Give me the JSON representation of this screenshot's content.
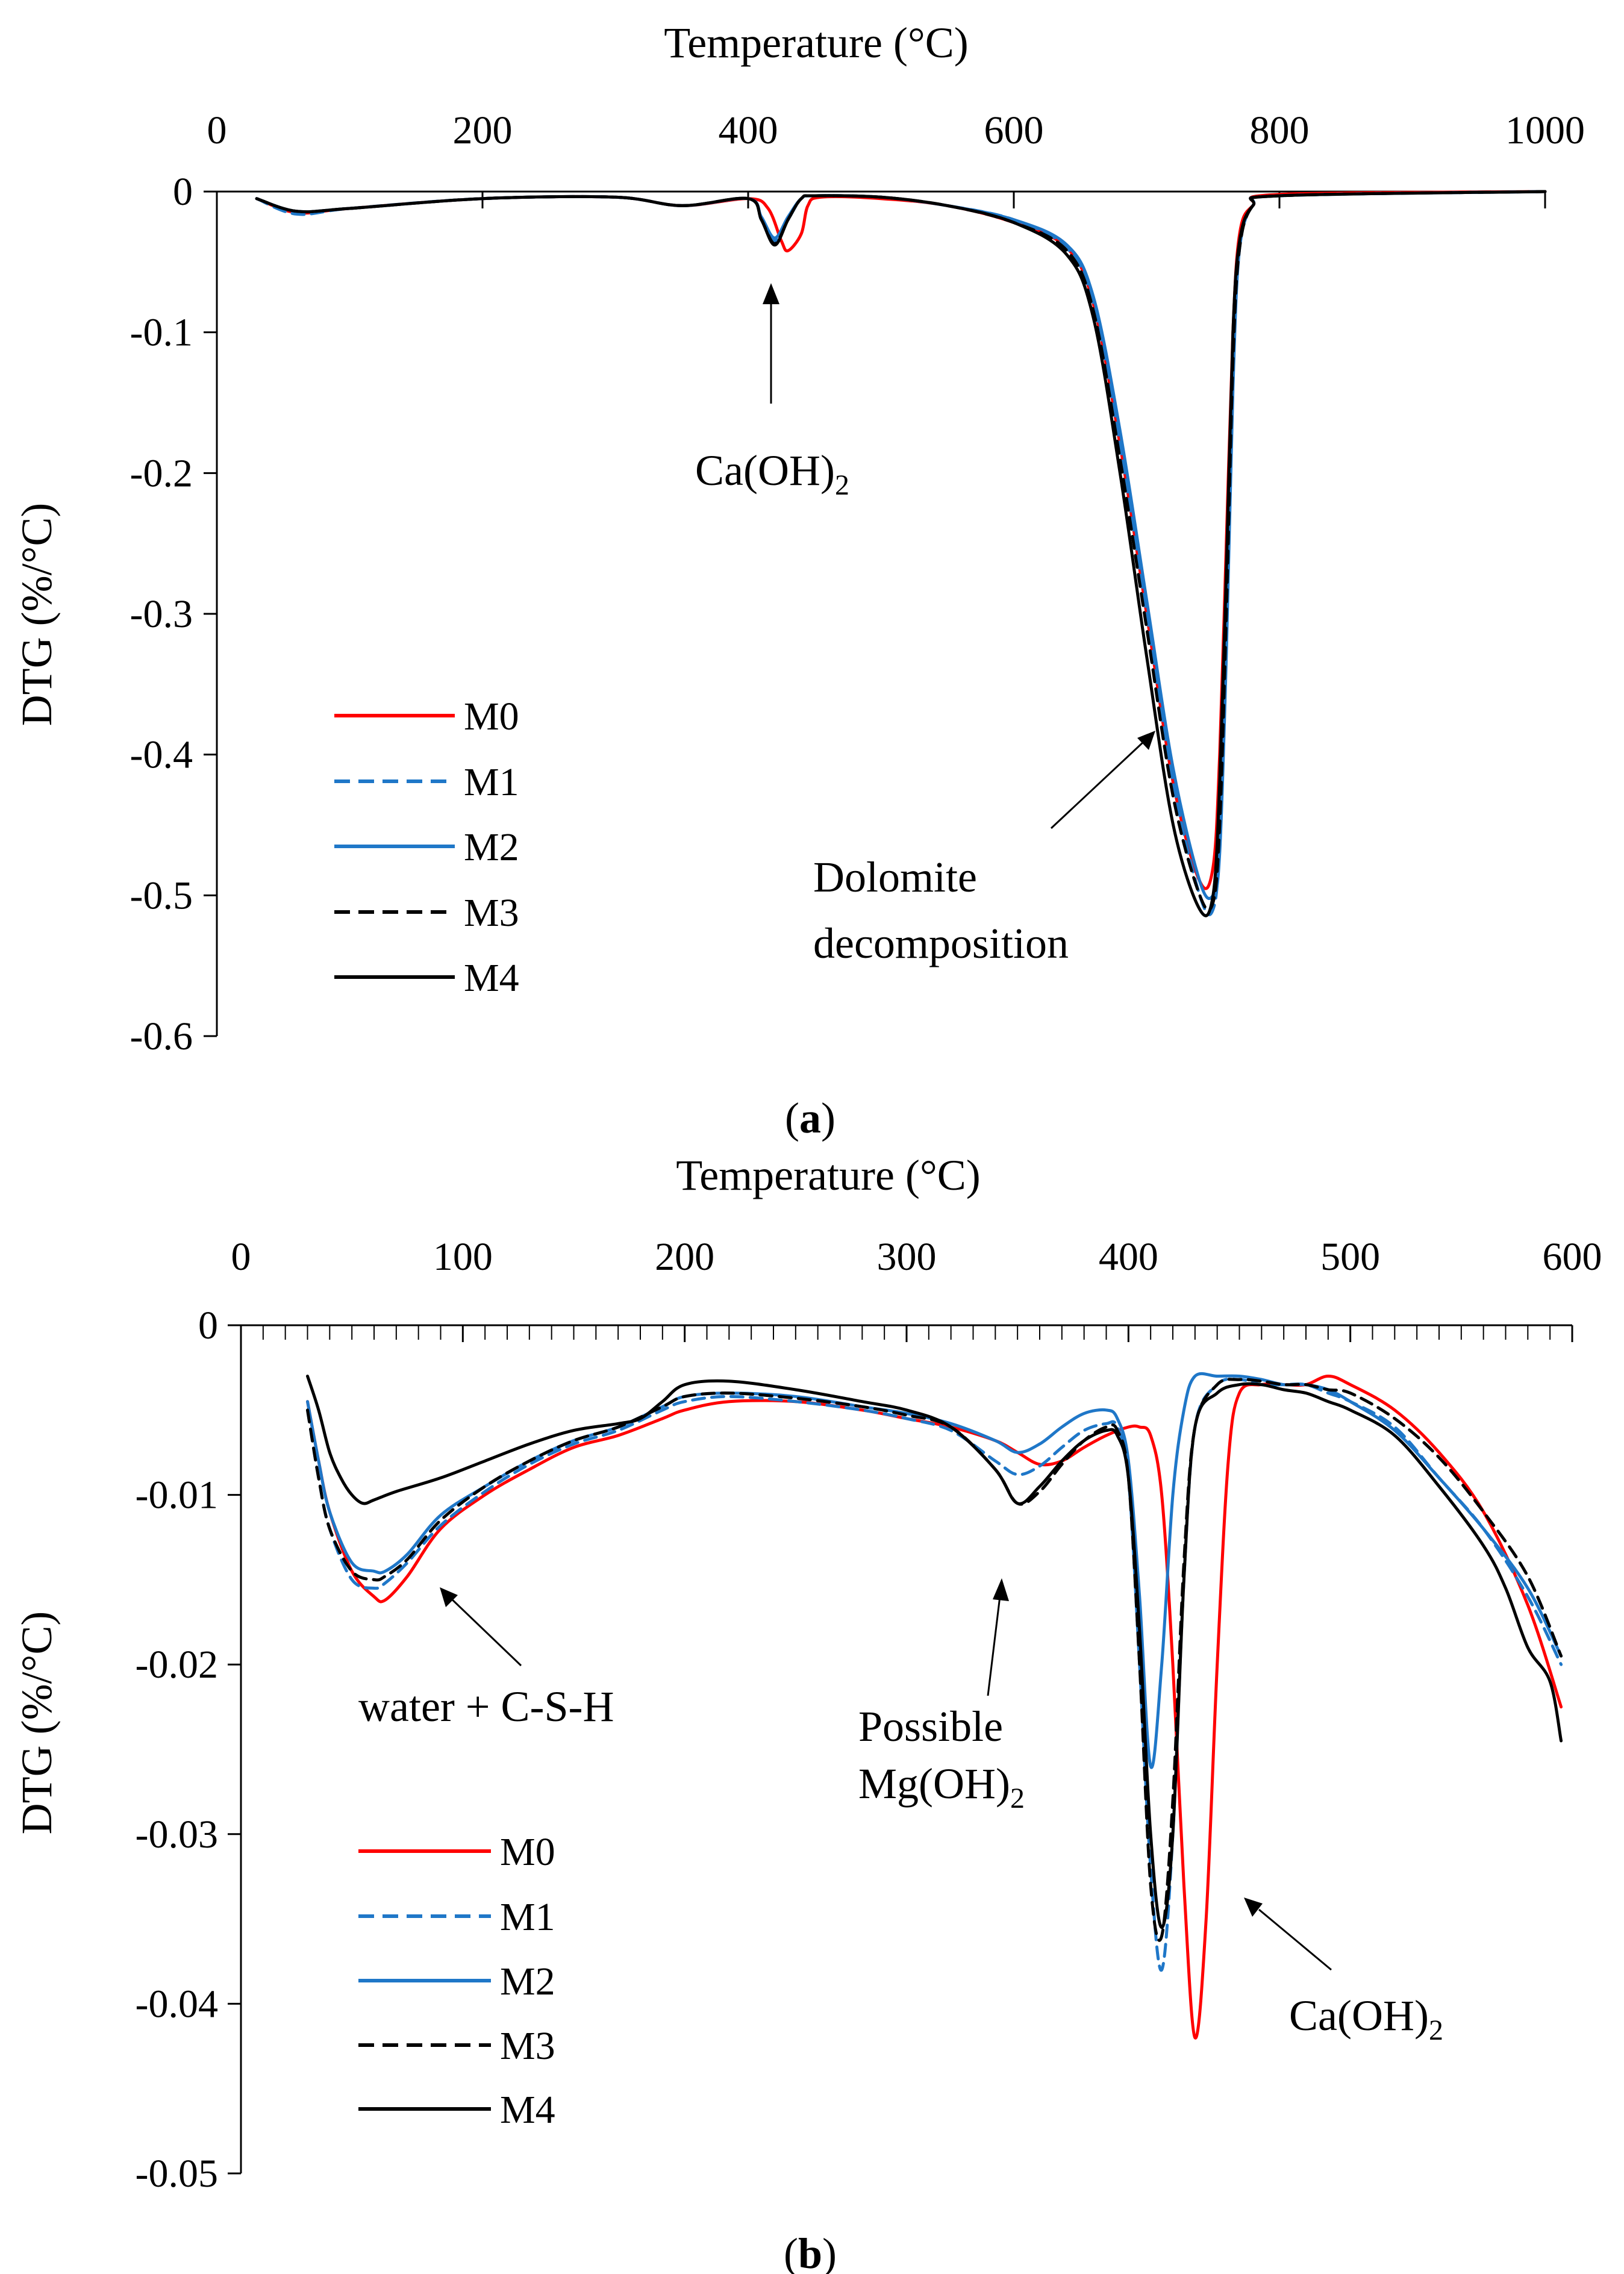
{
  "colors": {
    "M0": "#ff0000",
    "M1": "#1f77c8",
    "M2": "#1f77c8",
    "M3": "#000000",
    "M4": "#000000"
  },
  "chart_data": [
    {
      "type": "line",
      "panel": "a",
      "caption": {
        "open": "(",
        "letter": "a",
        "close": ")"
      },
      "xlabel": "Temperature (°C)",
      "ylabel": "DTG (%/°C)",
      "xlim": [
        0,
        1000
      ],
      "ylim": [
        -0.6,
        0
      ],
      "xticks": [
        "0",
        "200",
        "400",
        "600",
        "800",
        "1000"
      ],
      "yticks": [
        "0",
        "-0.1",
        "-0.2",
        "-0.3",
        "-0.4",
        "-0.5",
        "-0.6"
      ],
      "legend_position": "bottom-left",
      "annotations": [
        {
          "lines": [
            {
              "text": "Ca(OH)",
              "sub": "2"
            }
          ],
          "target": [
            420,
            -0.035
          ]
        },
        {
          "lines": [
            {
              "text": "Dolomite"
            },
            {
              "text": "decomposition"
            }
          ],
          "target": [
            705,
            -0.38
          ]
        }
      ],
      "series": [
        {
          "name": "M0",
          "style": "solid",
          "x": [
            30,
            60,
            100,
            200,
            300,
            350,
            400,
            415,
            425,
            430,
            440,
            445,
            455,
            500,
            550,
            600,
            640,
            660,
            680,
            700,
            720,
            740,
            750,
            755,
            760,
            765,
            770,
            780,
            800,
            1000
          ],
          "y": [
            -0.005,
            -0.015,
            -0.012,
            -0.005,
            -0.004,
            -0.01,
            -0.005,
            -0.012,
            -0.035,
            -0.042,
            -0.03,
            -0.01,
            -0.004,
            -0.005,
            -0.01,
            -0.022,
            -0.04,
            -0.08,
            -0.18,
            -0.3,
            -0.42,
            -0.49,
            -0.48,
            -0.4,
            -0.25,
            -0.1,
            -0.03,
            -0.01,
            -0.002,
            0
          ]
        },
        {
          "name": "M1",
          "style": "dashed",
          "x": [
            30,
            60,
            100,
            200,
            300,
            350,
            400,
            410,
            420,
            430,
            440,
            450,
            500,
            550,
            600,
            640,
            660,
            680,
            700,
            720,
            740,
            750,
            755,
            760,
            765,
            770,
            780,
            800,
            1000
          ],
          "y": [
            -0.005,
            -0.016,
            -0.012,
            -0.005,
            -0.004,
            -0.01,
            -0.005,
            -0.02,
            -0.035,
            -0.02,
            -0.005,
            -0.003,
            -0.004,
            -0.01,
            -0.02,
            -0.04,
            -0.08,
            -0.18,
            -0.3,
            -0.42,
            -0.5,
            -0.51,
            -0.46,
            -0.3,
            -0.12,
            -0.04,
            -0.01,
            -0.003,
            0
          ]
        },
        {
          "name": "M2",
          "style": "solid",
          "x": [
            30,
            60,
            100,
            200,
            300,
            350,
            400,
            410,
            420,
            430,
            440,
            450,
            500,
            550,
            600,
            640,
            660,
            680,
            700,
            720,
            740,
            750,
            755,
            760,
            765,
            770,
            780,
            800,
            1000
          ],
          "y": [
            -0.005,
            -0.014,
            -0.012,
            -0.005,
            -0.004,
            -0.01,
            -0.005,
            -0.018,
            -0.033,
            -0.018,
            -0.005,
            -0.003,
            -0.004,
            -0.01,
            -0.02,
            -0.038,
            -0.075,
            -0.17,
            -0.29,
            -0.41,
            -0.49,
            -0.5,
            -0.47,
            -0.33,
            -0.14,
            -0.04,
            -0.01,
            -0.003,
            0
          ]
        },
        {
          "name": "M3",
          "style": "dashed",
          "x": [
            30,
            60,
            100,
            200,
            300,
            350,
            400,
            410,
            420,
            430,
            440,
            450,
            500,
            550,
            600,
            640,
            660,
            680,
            700,
            720,
            740,
            750,
            755,
            760,
            765,
            770,
            780,
            800,
            1000
          ],
          "y": [
            -0.005,
            -0.014,
            -0.012,
            -0.005,
            -0.004,
            -0.01,
            -0.005,
            -0.02,
            -0.037,
            -0.02,
            -0.005,
            -0.003,
            -0.004,
            -0.01,
            -0.022,
            -0.042,
            -0.085,
            -0.19,
            -0.31,
            -0.43,
            -0.5,
            -0.505,
            -0.45,
            -0.3,
            -0.12,
            -0.04,
            -0.01,
            -0.003,
            0
          ]
        },
        {
          "name": "M4",
          "style": "solid",
          "x": [
            30,
            60,
            100,
            200,
            300,
            350,
            400,
            410,
            420,
            430,
            440,
            450,
            500,
            550,
            600,
            640,
            660,
            680,
            700,
            720,
            740,
            750,
            755,
            760,
            765,
            770,
            780,
            800,
            1000
          ],
          "y": [
            -0.005,
            -0.014,
            -0.012,
            -0.005,
            -0.004,
            -0.01,
            -0.005,
            -0.02,
            -0.038,
            -0.02,
            -0.005,
            -0.003,
            -0.004,
            -0.01,
            -0.022,
            -0.045,
            -0.09,
            -0.2,
            -0.33,
            -0.45,
            -0.51,
            -0.5,
            -0.42,
            -0.27,
            -0.1,
            -0.035,
            -0.01,
            -0.003,
            0
          ]
        }
      ]
    },
    {
      "type": "line",
      "panel": "b",
      "caption": {
        "open": "(",
        "letter": "b",
        "close": ")"
      },
      "xlabel": "Temperature (°C)",
      "ylabel": "DTG (%/°C)",
      "xlim": [
        0,
        600
      ],
      "ylim": [
        -0.05,
        0
      ],
      "xticks": [
        "0",
        "100",
        "200",
        "300",
        "400",
        "500",
        "600"
      ],
      "yticks": [
        "0",
        "-0.01",
        "-0.02",
        "-0.03",
        "-0.04",
        "-0.05"
      ],
      "x_minor_step": 10,
      "legend_position": "bottom-left",
      "annotations": [
        {
          "lines": [
            {
              "text": "water + C-S-H"
            }
          ],
          "target": [
            92,
            -0.0155
          ]
        },
        {
          "lines": [
            {
              "text": "Possible"
            },
            {
              "text": "Mg(OH)",
              "sub": "2"
            }
          ],
          "target": [
            343,
            -0.0118
          ]
        },
        {
          "lines": [
            {
              "text": "Ca(OH)",
              "sub": "2"
            }
          ],
          "target": [
            448,
            -0.0355
          ]
        }
      ],
      "series": [
        {
          "name": "M0",
          "style": "solid",
          "x": [
            30,
            35,
            40,
            50,
            60,
            65,
            75,
            90,
            110,
            130,
            150,
            170,
            190,
            200,
            220,
            250,
            280,
            300,
            320,
            340,
            350,
            360,
            370,
            380,
            390,
            400,
            405,
            410,
            415,
            420,
            425,
            430,
            435,
            440,
            445,
            450,
            460,
            470,
            480,
            490,
            500,
            520,
            540,
            560,
            580,
            595
          ],
          "y": [
            -0.0045,
            -0.008,
            -0.011,
            -0.0145,
            -0.016,
            -0.0162,
            -0.0148,
            -0.012,
            -0.01,
            -0.0085,
            -0.0072,
            -0.0065,
            -0.0055,
            -0.005,
            -0.0045,
            -0.0045,
            -0.005,
            -0.0055,
            -0.006,
            -0.0068,
            -0.0075,
            -0.0082,
            -0.008,
            -0.0072,
            -0.0065,
            -0.006,
            -0.006,
            -0.0065,
            -0.01,
            -0.02,
            -0.033,
            -0.042,
            -0.035,
            -0.02,
            -0.008,
            -0.004,
            -0.0035,
            -0.0035,
            -0.0035,
            -0.003,
            -0.0035,
            -0.005,
            -0.0075,
            -0.011,
            -0.0165,
            -0.0225
          ]
        },
        {
          "name": "M1",
          "style": "dashed",
          "x": [
            30,
            35,
            40,
            50,
            60,
            65,
            75,
            90,
            110,
            130,
            150,
            170,
            190,
            200,
            220,
            250,
            280,
            300,
            320,
            340,
            350,
            360,
            370,
            380,
            390,
            395,
            400,
            405,
            410,
            415,
            420,
            425,
            430,
            440,
            450,
            460,
            470,
            480,
            490,
            500,
            520,
            540,
            560,
            580,
            595
          ],
          "y": [
            -0.005,
            -0.009,
            -0.012,
            -0.015,
            -0.0155,
            -0.0152,
            -0.014,
            -0.0118,
            -0.0098,
            -0.0082,
            -0.007,
            -0.0062,
            -0.005,
            -0.0045,
            -0.0042,
            -0.0045,
            -0.005,
            -0.0055,
            -0.0062,
            -0.008,
            -0.0088,
            -0.0083,
            -0.0072,
            -0.0062,
            -0.0058,
            -0.006,
            -0.009,
            -0.02,
            -0.032,
            -0.038,
            -0.03,
            -0.015,
            -0.006,
            -0.0035,
            -0.0032,
            -0.0035,
            -0.0035,
            -0.0035,
            -0.004,
            -0.0045,
            -0.006,
            -0.009,
            -0.012,
            -0.016,
            -0.02
          ]
        },
        {
          "name": "M2",
          "style": "solid",
          "x": [
            30,
            35,
            40,
            50,
            60,
            65,
            75,
            90,
            110,
            130,
            150,
            170,
            190,
            200,
            220,
            250,
            280,
            300,
            320,
            340,
            350,
            360,
            370,
            380,
            390,
            395,
            400,
            405,
            410,
            415,
            420,
            425,
            430,
            440,
            450,
            460,
            470,
            480,
            490,
            500,
            520,
            540,
            560,
            580,
            595
          ],
          "y": [
            -0.0045,
            -0.008,
            -0.011,
            -0.014,
            -0.0145,
            -0.0145,
            -0.0135,
            -0.0112,
            -0.0095,
            -0.008,
            -0.0068,
            -0.006,
            -0.0048,
            -0.0042,
            -0.004,
            -0.0042,
            -0.0048,
            -0.0052,
            -0.0058,
            -0.0068,
            -0.0075,
            -0.007,
            -0.006,
            -0.0052,
            -0.005,
            -0.0055,
            -0.008,
            -0.016,
            -0.026,
            -0.02,
            -0.01,
            -0.005,
            -0.003,
            -0.003,
            -0.003,
            -0.0032,
            -0.0035,
            -0.0035,
            -0.0038,
            -0.0045,
            -0.0062,
            -0.009,
            -0.012,
            -0.0155,
            -0.0195
          ]
        },
        {
          "name": "M3",
          "style": "dashed",
          "x": [
            30,
            35,
            40,
            50,
            60,
            65,
            75,
            90,
            110,
            130,
            150,
            170,
            190,
            200,
            220,
            250,
            280,
            300,
            320,
            340,
            350,
            360,
            370,
            380,
            390,
            395,
            400,
            405,
            410,
            415,
            420,
            425,
            430,
            440,
            450,
            460,
            470,
            480,
            490,
            500,
            520,
            540,
            560,
            580,
            595
          ],
          "y": [
            -0.005,
            -0.009,
            -0.012,
            -0.0145,
            -0.015,
            -0.0148,
            -0.0138,
            -0.0115,
            -0.0095,
            -0.008,
            -0.0068,
            -0.006,
            -0.0048,
            -0.0042,
            -0.004,
            -0.0043,
            -0.0048,
            -0.0053,
            -0.006,
            -0.0085,
            -0.0105,
            -0.0098,
            -0.0082,
            -0.0068,
            -0.006,
            -0.0062,
            -0.009,
            -0.02,
            -0.033,
            -0.036,
            -0.028,
            -0.014,
            -0.006,
            -0.0035,
            -0.0032,
            -0.0033,
            -0.0035,
            -0.0035,
            -0.0038,
            -0.004,
            -0.0055,
            -0.0078,
            -0.011,
            -0.0148,
            -0.0195
          ]
        },
        {
          "name": "M4",
          "style": "solid",
          "x": [
            30,
            35,
            40,
            45,
            50,
            55,
            60,
            70,
            90,
            110,
            130,
            150,
            170,
            180,
            190,
            200,
            220,
            250,
            280,
            300,
            320,
            340,
            350,
            360,
            370,
            380,
            390,
            395,
            400,
            405,
            410,
            415,
            420,
            425,
            430,
            440,
            450,
            460,
            470,
            480,
            490,
            500,
            520,
            540,
            560,
            570,
            580,
            590,
            595
          ],
          "y": [
            -0.003,
            -0.005,
            -0.0075,
            -0.009,
            -0.01,
            -0.0105,
            -0.0103,
            -0.0098,
            -0.009,
            -0.008,
            -0.007,
            -0.0062,
            -0.0058,
            -0.0055,
            -0.0045,
            -0.0035,
            -0.0033,
            -0.0038,
            -0.0045,
            -0.005,
            -0.006,
            -0.0085,
            -0.0105,
            -0.0095,
            -0.008,
            -0.0068,
            -0.0062,
            -0.0065,
            -0.009,
            -0.018,
            -0.03,
            -0.0355,
            -0.03,
            -0.015,
            -0.006,
            -0.004,
            -0.0035,
            -0.0035,
            -0.0038,
            -0.004,
            -0.0045,
            -0.005,
            -0.0065,
            -0.0095,
            -0.013,
            -0.0155,
            -0.019,
            -0.021,
            -0.0245
          ]
        }
      ]
    }
  ]
}
